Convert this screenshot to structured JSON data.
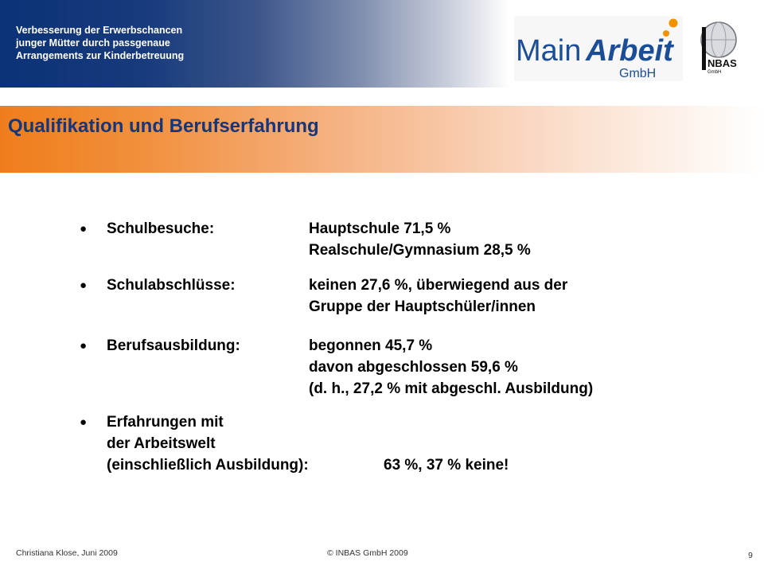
{
  "header": {
    "project_title_lines": [
      "Verbesserung der Erwerbschancen",
      "junger Mütter durch passgenaue",
      "Arrangements zur Kinderbetreuung"
    ]
  },
  "logos": {
    "main_arbeit": {
      "part1": "Main",
      "part2": "Arbeit",
      "sub": "GmbH"
    },
    "inbas": {
      "text": "NBAS",
      "sub": "GmbH"
    }
  },
  "section": {
    "title": "Qualifikation und Berufserfahrung"
  },
  "items": [
    {
      "bullet": "●",
      "label": [
        "Schulbesuche:"
      ],
      "values": [
        "Hauptschule 71,5 %",
        "Realschule/Gymnasium 28,5 %"
      ]
    },
    {
      "bullet": "●",
      "label": [
        "Schulabschlüsse:"
      ],
      "values": [
        "keinen 27,6 %, überwiegend aus der",
        "Gruppe der Hauptschüler/innen"
      ]
    },
    {
      "bullet": "●",
      "label": [
        "Berufsausbildung:"
      ],
      "values": [
        "begonnen 45,7 %",
        "davon abgeschlossen 59,6 %",
        "(d. h., 27,2 % mit abgeschl. Ausbildung)"
      ]
    },
    {
      "bullet": "●",
      "label": [
        "Erfahrungen mit",
        "der Arbeitswelt",
        "(einschließlich Ausbildung):"
      ],
      "value_inline": "63 %, 37 % keine!"
    }
  ],
  "footer": {
    "author": "Christiana Klose, Juni 2009",
    "copyright": "© INBAS GmbH 2009",
    "page_number": "9"
  },
  "colors": {
    "navy": "#16367c",
    "orange": "#ef7d1c",
    "logo_blue": "#1c4e97",
    "logo_orange": "#f39200"
  }
}
